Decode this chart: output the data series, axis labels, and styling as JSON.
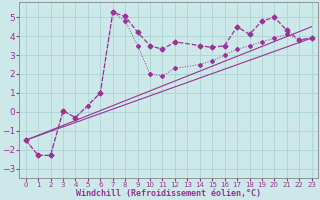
{
  "xlabel": "Windchill (Refroidissement éolien,°C)",
  "bg_color": "#cce8e8",
  "grid_color": "#aad4d4",
  "line_color": "#993399",
  "xlim": [
    -0.5,
    23.5
  ],
  "ylim": [
    -3.5,
    5.8
  ],
  "yticks": [
    -3,
    -2,
    -1,
    0,
    1,
    2,
    3,
    4,
    5
  ],
  "xtick_labels": [
    "0",
    "1",
    "2",
    "3",
    "4",
    "5",
    "6",
    "7",
    "8",
    "9",
    "1011",
    "12",
    "",
    "1415",
    "1617",
    "1819",
    "2021",
    "2223"
  ],
  "series1_x": [
    0,
    1,
    2,
    3,
    4,
    6,
    7,
    8,
    9,
    10,
    11,
    12,
    14,
    15,
    16,
    17,
    18,
    19,
    20,
    21,
    22,
    23
  ],
  "series1_y": [
    -1.5,
    -2.3,
    -2.3,
    0.05,
    -0.3,
    1.0,
    5.25,
    5.05,
    4.2,
    3.5,
    3.3,
    3.7,
    3.5,
    3.4,
    3.5,
    4.5,
    4.1,
    4.8,
    5.0,
    4.3,
    3.8,
    3.9
  ],
  "series2_x": [
    0,
    1,
    2,
    3,
    4,
    5,
    6,
    7,
    8,
    9,
    10,
    11,
    12,
    14,
    15,
    16,
    17,
    18,
    19,
    20,
    21,
    22,
    23
  ],
  "series2_y": [
    -1.5,
    -2.3,
    -2.3,
    0.05,
    -0.3,
    0.3,
    1.0,
    5.25,
    4.8,
    3.5,
    2.0,
    1.9,
    2.3,
    2.5,
    2.7,
    3.0,
    3.3,
    3.5,
    3.7,
    3.9,
    4.1,
    3.8,
    3.9
  ],
  "series3_x": [
    0,
    23
  ],
  "series3_y": [
    -1.5,
    3.9
  ],
  "series4_x": [
    0,
    23
  ],
  "series4_y": [
    -1.5,
    4.5
  ]
}
